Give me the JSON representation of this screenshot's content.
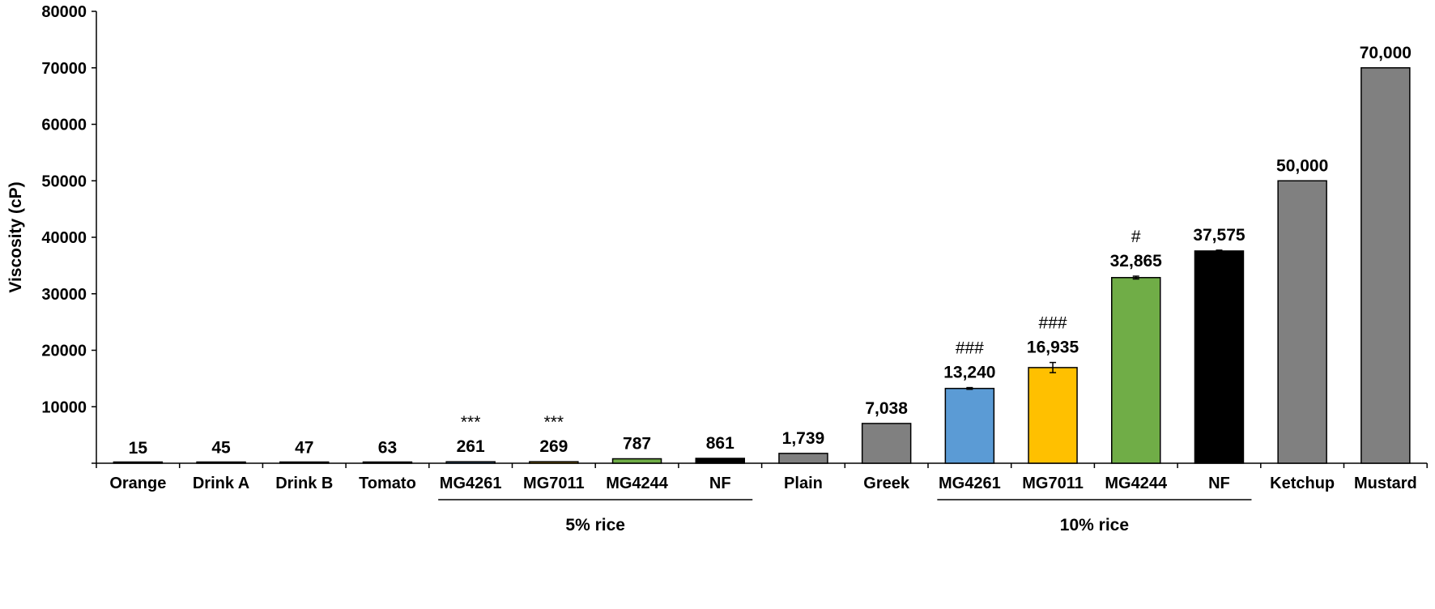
{
  "chart_data": {
    "type": "bar",
    "title": "",
    "xlabel": "",
    "ylabel": "Viscosity (cP)",
    "ylim": [
      0,
      80000
    ],
    "yticks": [
      0,
      10000,
      20000,
      30000,
      40000,
      50000,
      60000,
      70000,
      80000
    ],
    "ytick_labels": [
      "",
      "10000",
      "20000",
      "30000",
      "40000",
      "50000",
      "60000",
      "70000",
      "80000"
    ],
    "grid": false,
    "legend": "none",
    "categories": [
      "Orange",
      "Drink A",
      "Drink B",
      "Tomato",
      "MG4261",
      "MG7011",
      "MG4244",
      "NF",
      "Plain",
      "Greek",
      "MG4261",
      "MG7011",
      "MG4244",
      "NF",
      "Ketchup",
      "Mustard"
    ],
    "values": [
      15,
      45,
      47,
      63,
      261,
      269,
      787,
      861,
      1739,
      7038,
      13240,
      16935,
      32865,
      37575,
      50000,
      70000
    ],
    "data_labels": [
      "15",
      "45",
      "47",
      "63",
      "261",
      "269",
      "787",
      "861",
      "1,739",
      "7,038",
      "13,240",
      "16,935",
      "32,865",
      "37,575",
      "50,000",
      "70,000"
    ],
    "annotations": [
      "",
      "",
      "",
      "",
      "***",
      "***",
      "",
      "",
      "",
      "",
      "###",
      "###",
      "#",
      "",
      "",
      ""
    ],
    "error_bars": [
      0,
      0,
      0,
      0,
      0,
      0,
      0,
      0,
      0,
      0,
      150,
      900,
      250,
      150,
      0,
      0
    ],
    "bar_colors": [
      "#808080",
      "#808080",
      "#808080",
      "#808080",
      "#5b9bd5",
      "#ffc000",
      "#70ad47",
      "#000000",
      "#808080",
      "#808080",
      "#5b9bd5",
      "#ffc000",
      "#70ad47",
      "#000000",
      "#808080",
      "#808080"
    ],
    "groups": [
      {
        "label": "5% rice",
        "start": 4,
        "end": 7
      },
      {
        "label": "10% rice",
        "start": 10,
        "end": 13
      }
    ]
  }
}
